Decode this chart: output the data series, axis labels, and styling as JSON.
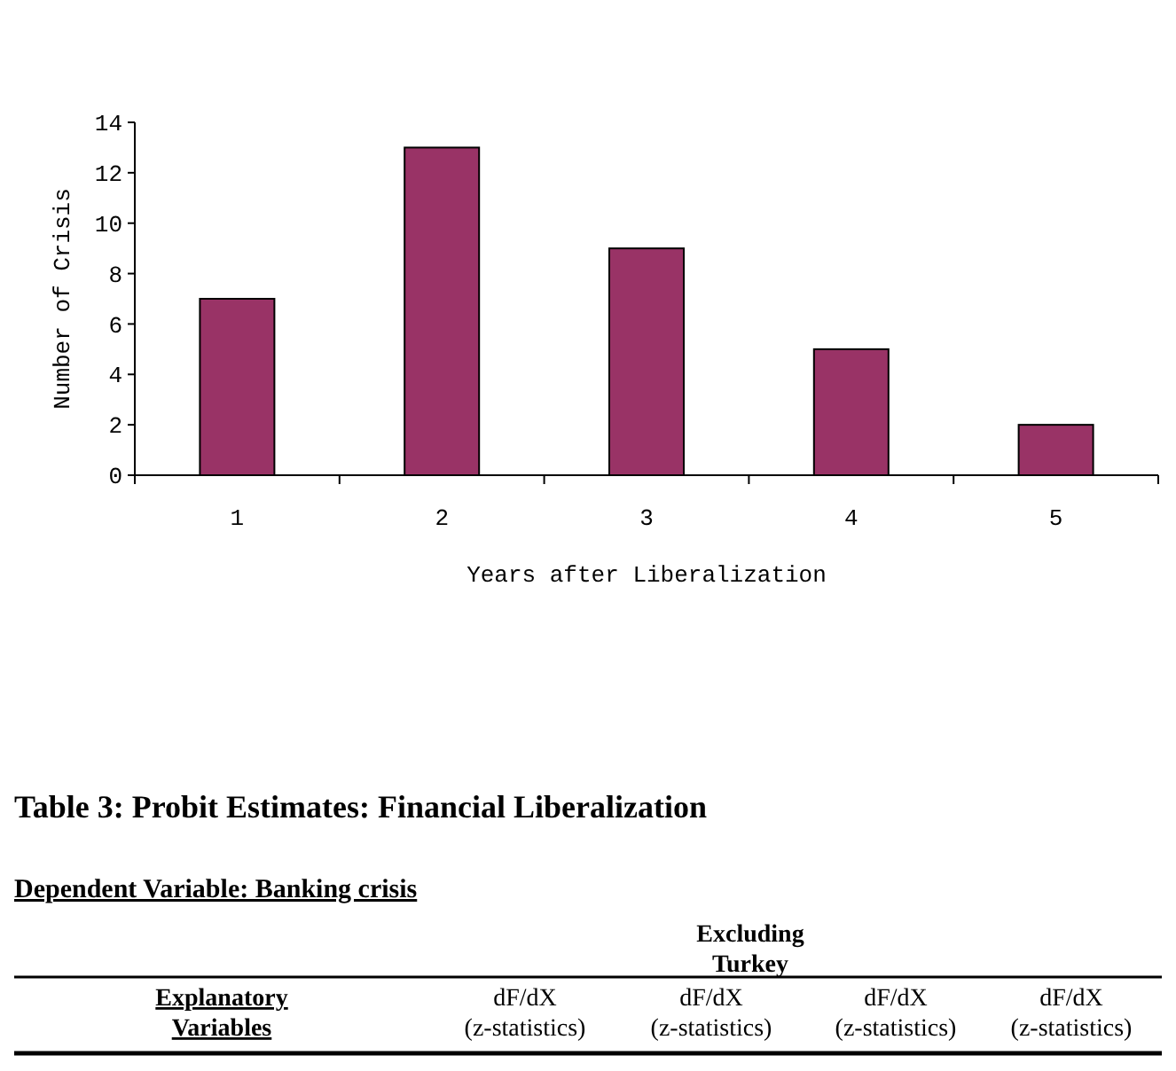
{
  "chart_data": {
    "type": "bar",
    "xlabel": "Years after Liberalization",
    "ylabel": "Number of Crisis",
    "categories": [
      "1",
      "2",
      "3",
      "4",
      "5"
    ],
    "values": [
      7,
      13,
      9,
      5,
      2
    ],
    "color": "#993366",
    "ylim": [
      0,
      14
    ],
    "yticks": [
      0,
      2,
      4,
      6,
      8,
      10,
      12,
      14
    ],
    "grid": false,
    "annotations": [
      "Table 3:   Probit Estimates: Financial Liberalization",
      "Dependent Variable: Banking crisis",
      "Excluding\nTurkey",
      "Explanatory\nVariables",
      "dF/dX\n(z-statistics)",
      "dF/dX\n(z-statistics)",
      "dF/dX\n(z-statistics)",
      "dF/dX\n(z-statistics)"
    ]
  }
}
